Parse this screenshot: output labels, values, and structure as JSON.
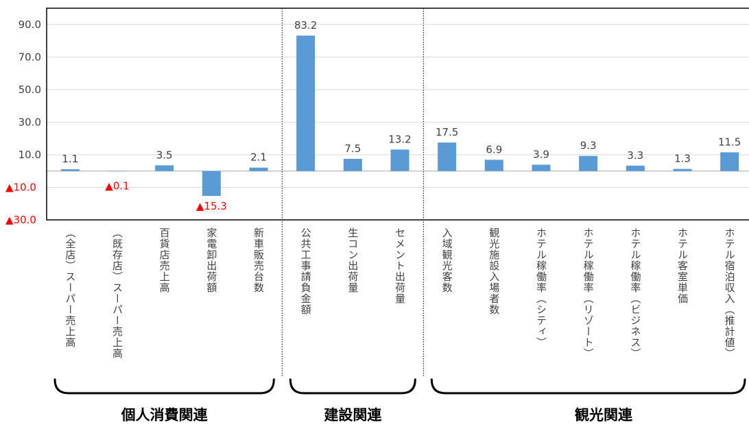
{
  "chart_data": {
    "type": "bar",
    "categories": [
      "（全店）スーパー売上高",
      "（既存店）スーパー売上高",
      "百貨店売上高",
      "家電卸出荷額",
      "新車販売台数",
      "公共工事請負金額",
      "生コン出荷量",
      "セメント出荷量",
      "入域観光客数",
      "観光施設入場者数",
      "ホテル稼働率（シティ）",
      "ホテル稼働率（リゾート）",
      "ホテル稼働率（ビジネス）",
      "ホテル客室単価",
      "ホテル宿泊収入（推計値）"
    ],
    "values": [
      1.1,
      -0.1,
      3.5,
      -15.3,
      2.1,
      83.2,
      7.5,
      13.2,
      17.5,
      6.9,
      3.9,
      9.3,
      3.3,
      1.3,
      11.5
    ],
    "value_labels": [
      "1.1",
      "▲0.1",
      "3.5",
      "▲15.3",
      "2.1",
      "83.2",
      "7.5",
      "13.2",
      "17.5",
      "6.9",
      "3.9",
      "9.3",
      "3.3",
      "1.3",
      "11.5"
    ],
    "yticks": [
      90,
      70,
      50,
      30,
      10,
      -10,
      -30
    ],
    "ytick_labels": [
      "90.0",
      "70.0",
      "50.0",
      "30.0",
      "10.0",
      "▲10.0",
      "▲30.0"
    ],
    "ylim": [
      -30,
      100
    ],
    "groups": [
      {
        "name": "個人消費関連",
        "start": 0,
        "end": 4
      },
      {
        "name": "建設関連",
        "start": 5,
        "end": 7
      },
      {
        "name": "観光関連",
        "start": 8,
        "end": 14
      }
    ],
    "colors": {
      "bar": "#5B9BD5",
      "negative_label": "#FF0000",
      "text": "#404040",
      "grid": "#D9D9D9"
    }
  }
}
